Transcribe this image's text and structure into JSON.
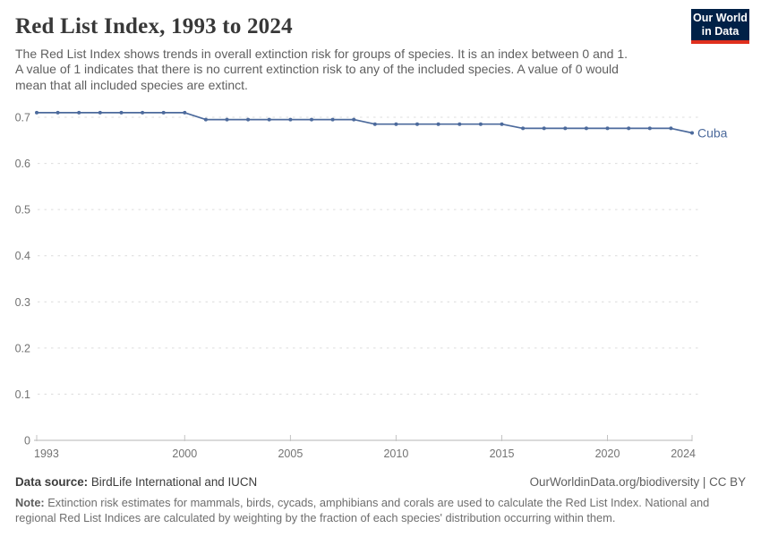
{
  "header": {
    "title": "Red List Index, 1993 to 2024",
    "subtitle_lines": [
      "The Red List Index shows trends in overall extinction risk for groups of species. It is an index between 0 and 1.",
      "A value of 1 indicates that there is no current extinction risk to any of the included species. A value of 0 would",
      "mean that all included species are extinct."
    ]
  },
  "branding": {
    "logo_line1": "Our World",
    "logo_line2": "in Data",
    "logo_bg": "#002147",
    "logo_accent": "#e0301e"
  },
  "chart_data": {
    "type": "line",
    "title": "Red List Index, 1993 to 2024",
    "entity": "Cuba",
    "x": [
      1993,
      1994,
      1995,
      1996,
      1997,
      1998,
      1999,
      2000,
      2001,
      2002,
      2003,
      2004,
      2005,
      2006,
      2007,
      2008,
      2009,
      2010,
      2011,
      2012,
      2013,
      2014,
      2015,
      2016,
      2017,
      2018,
      2019,
      2020,
      2021,
      2022,
      2023,
      2024
    ],
    "series": [
      {
        "name": "Cuba",
        "color": "#4c6a9c",
        "values": [
          0.71,
          0.71,
          0.71,
          0.71,
          0.71,
          0.71,
          0.71,
          0.71,
          0.695,
          0.695,
          0.695,
          0.695,
          0.695,
          0.695,
          0.695,
          0.695,
          0.685,
          0.685,
          0.685,
          0.685,
          0.685,
          0.685,
          0.685,
          0.676,
          0.676,
          0.676,
          0.676,
          0.676,
          0.676,
          0.676,
          0.676,
          0.666
        ]
      }
    ],
    "xlim": [
      1993,
      2024
    ],
    "ylim": [
      0,
      0.74
    ],
    "xtick_values": [
      1993,
      2000,
      2005,
      2010,
      2015,
      2020,
      2024
    ],
    "xtick_labels": [
      "1993",
      "2000",
      "2005",
      "2010",
      "2015",
      "2020",
      "2024"
    ],
    "ytick_values": [
      0,
      0.1,
      0.2,
      0.3,
      0.4,
      0.5,
      0.6,
      0.7
    ],
    "ytick_labels": [
      "0",
      "0.1",
      "0.2",
      "0.3",
      "0.4",
      "0.5",
      "0.6",
      "0.7"
    ],
    "grid": "horizontal-dashed",
    "legend_position": "end-of-line-label"
  },
  "colors": {
    "line": "#4c6a9c",
    "axis_label": "#737373",
    "gridline": "#dcdcdc",
    "axis_line": "#b5b5b5",
    "tick_mark": "#c3c3c3"
  },
  "footer": {
    "source_label": "Data source:",
    "source_text": "BirdLife International and IUCN",
    "attribution": "OurWorldinData.org/biodiversity | CC BY",
    "note_label": "Note:",
    "note_lines": [
      "Extinction risk estimates for mammals, birds, cycads, amphibians and corals are used to calculate the Red List Index. National and",
      "regional Red List Indices are calculated by weighting by the fraction of each species' distribution occurring within them."
    ]
  }
}
